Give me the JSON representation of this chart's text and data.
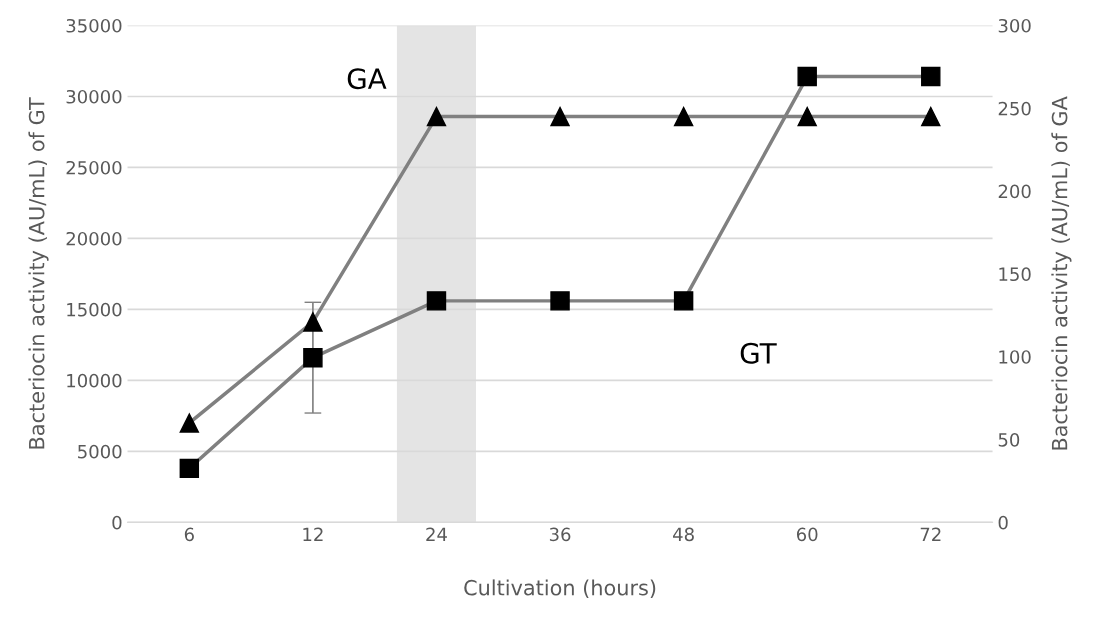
{
  "chart_data": {
    "type": "line",
    "xlabel": "Cultivation (hours)",
    "ylabel": "Bacteriocin activity (AU/mL) of GT",
    "y2label": "Bacteriocin activity (AU/mL) of GA",
    "categories": [
      "6",
      "12",
      "24",
      "36",
      "48",
      "60",
      "72"
    ],
    "series": [
      {
        "name": "GT",
        "color": "#000000",
        "marker": "square",
        "values": [
          3800,
          11600,
          15600,
          15600,
          15600,
          31400,
          31400
        ],
        "errors": [
          null,
          3900,
          null,
          null,
          null,
          null,
          null
        ]
      },
      {
        "name": "GA",
        "color": "#000000",
        "marker": "triangle",
        "axis": "y2",
        "values": [
          60,
          121,
          245,
          245,
          245,
          245,
          245
        ]
      }
    ],
    "ylim": [
      0,
      35000
    ],
    "yticks": [
      0,
      5000,
      10000,
      15000,
      20000,
      25000,
      30000,
      35000
    ],
    "y2lim": [
      0,
      300
    ],
    "y2ticks": [
      0,
      50,
      100,
      150,
      200,
      250,
      300
    ],
    "bands": [
      {
        "axis": "x",
        "from": "24",
        "to": "24",
        "color": "#e4e4e4"
      }
    ],
    "grid": "y",
    "legend": false,
    "line_style": "solid"
  }
}
